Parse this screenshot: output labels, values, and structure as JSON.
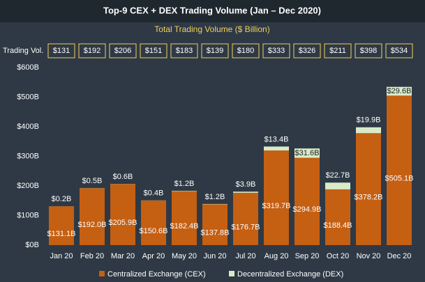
{
  "chart_data": {
    "type": "stacked-bar",
    "title": "Top-9 CEX + DEX Trading Volume (Jan – Dec 2020)",
    "subtitle": "Total Trading Volume ($ Billion)",
    "totals": {
      "label": "Trading Vol.",
      "values": [
        131,
        192,
        206,
        151,
        183,
        139,
        180,
        333,
        326,
        211,
        398,
        534
      ],
      "value_labels": [
        "$131",
        "$192",
        "$206",
        "$151",
        "$183",
        "$139",
        "$180",
        "$333",
        "$326",
        "$211",
        "$398",
        "$534"
      ],
      "color": "#f0d060"
    },
    "categories": [
      "Jan 20",
      "Feb 20",
      "Mar 20",
      "Apr 20",
      "May 20",
      "Jun 20",
      "Jul 20",
      "Aug 20",
      "Sep 20",
      "Oct 20",
      "Nov 20",
      "Dec 20"
    ],
    "series": [
      {
        "name": "Centralized Exchange (CEX)",
        "color": "#c55f12",
        "values": [
          131.1,
          192.0,
          205.9,
          150.6,
          182.4,
          137.8,
          176.7,
          319.7,
          294.9,
          188.4,
          378.2,
          505.1
        ],
        "value_labels": [
          "$131.1B",
          "$192.0B",
          "$205.9B",
          "$150.6B",
          "$182.4B",
          "$137.8B",
          "$176.7B",
          "$319.7B",
          "$294.9B",
          "$188.4B",
          "$378.2B",
          "$505.1B"
        ]
      },
      {
        "name": "Decentralized Exchange (DEX)",
        "color": "#d8ebc8",
        "values": [
          0.2,
          0.5,
          0.6,
          0.4,
          1.2,
          1.2,
          3.9,
          13.4,
          31.6,
          22.7,
          19.9,
          29.6
        ],
        "value_labels": [
          "$0.2B",
          "$0.5B",
          "$0.6B",
          "$0.4B",
          "$1.2B",
          "$1.2B",
          "$3.9B",
          "$13.4B",
          "$31.6B",
          "$22.7B",
          "$19.9B",
          "$29.6B"
        ]
      }
    ],
    "ylim": [
      0,
      600
    ],
    "yticks": [
      {
        "value": 0,
        "label": "$0B"
      },
      {
        "value": 100,
        "label": "$100B"
      },
      {
        "value": 200,
        "label": "$200B"
      },
      {
        "value": 300,
        "label": "$300B"
      },
      {
        "value": 400,
        "label": "$400B"
      },
      {
        "value": 500,
        "label": "$500B"
      },
      {
        "value": 600,
        "label": "$600B"
      }
    ],
    "grid": false
  }
}
